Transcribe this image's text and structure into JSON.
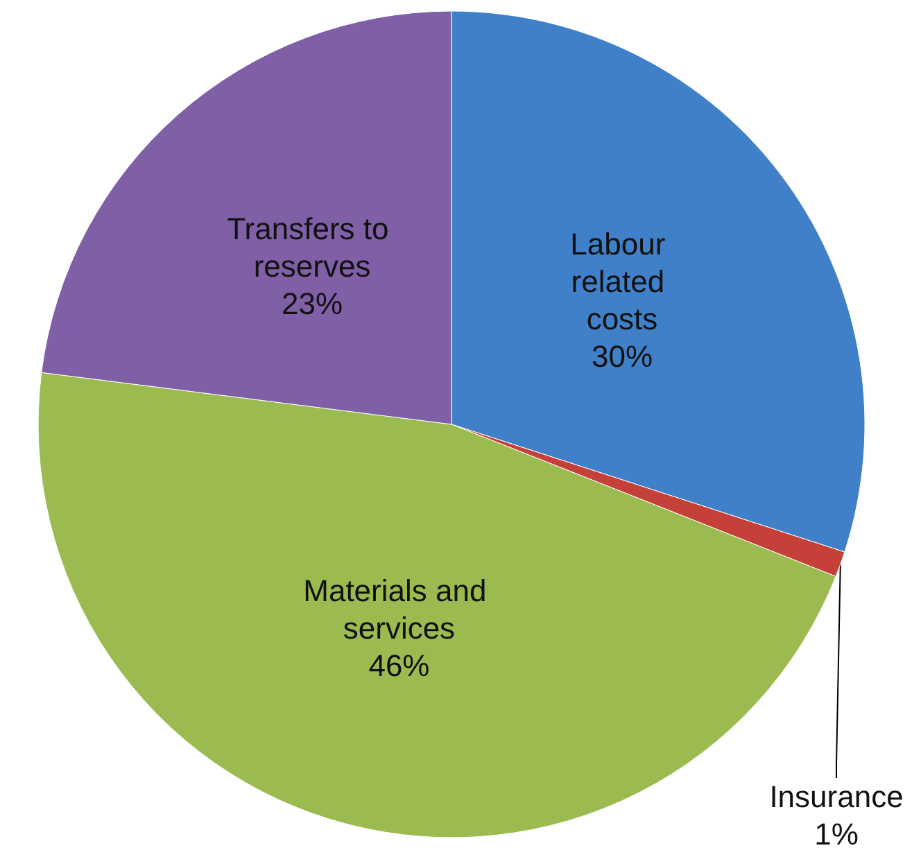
{
  "chart_data": {
    "type": "pie",
    "categories": [
      "Labour related costs",
      "Insurance",
      "Materials and services",
      "Transfers to reserves"
    ],
    "values": [
      30,
      1,
      46,
      23
    ],
    "colors": [
      "#4080c8",
      "#c6403a",
      "#9bbb50",
      "#7f5fa6"
    ],
    "value_labels": [
      "30%",
      "1%",
      "46%",
      "23%"
    ],
    "legend": false
  }
}
